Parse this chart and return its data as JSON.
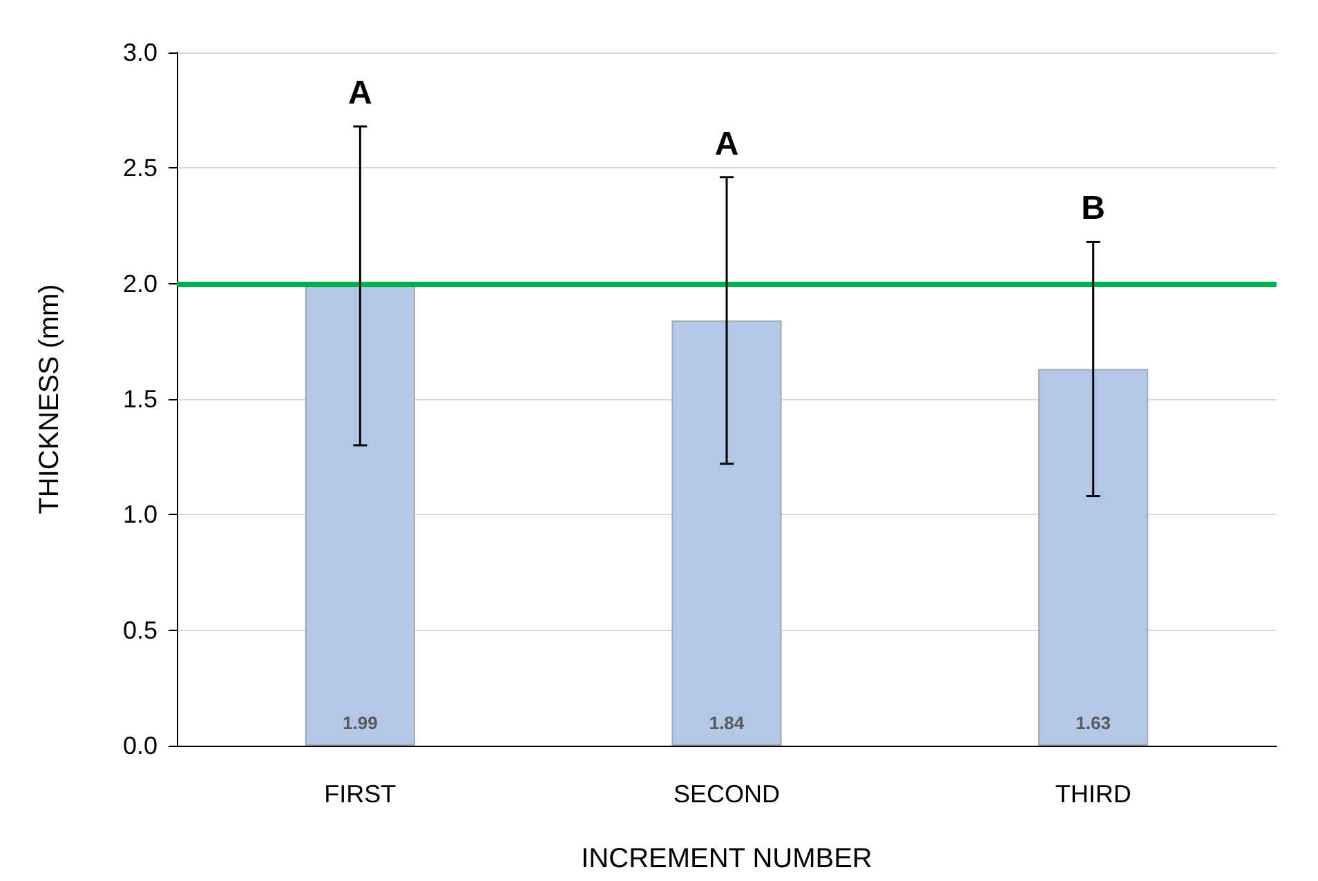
{
  "chart_data": {
    "type": "bar",
    "xlabel": "INCREMENT NUMBER",
    "ylabel": "THICKNESS (mm)",
    "categories": [
      "FIRST",
      "SECOND",
      "THIRD"
    ],
    "values": [
      1.99,
      1.84,
      1.63
    ],
    "color": "#b4c7e7",
    "errors": [
      0.69,
      0.62,
      0.55
    ],
    "data_labels": true,
    "ylim": [
      0,
      3
    ],
    "yticks": [
      {
        "value": 0,
        "label": "0.0"
      },
      {
        "value": 0.5,
        "label": "0.5"
      },
      {
        "value": 1,
        "label": "1.0"
      },
      {
        "value": 1.5,
        "label": "1.5"
      },
      {
        "value": 2,
        "label": "2.0"
      },
      {
        "value": 2.5,
        "label": "2.5"
      },
      {
        "value": 3,
        "label": "3.0"
      }
    ],
    "grid": "y",
    "ref_lines": [
      {
        "axis": "y",
        "value": 2,
        "color": "#00b050"
      }
    ],
    "annotations": [
      "A",
      "A",
      "B"
    ]
  }
}
